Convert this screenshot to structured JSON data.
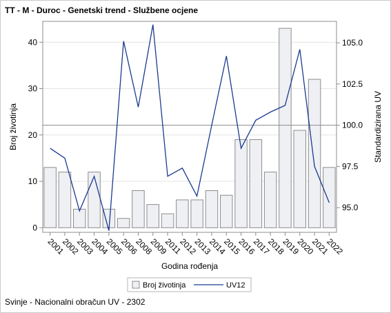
{
  "title": "TT - M - Duroc - Genetski trend - Službene ocjene",
  "footer": "Svinje - Nacionalni obračun UV - 2302",
  "chart_data": {
    "type": "bar",
    "categories": [
      "2001",
      "2002",
      "2003",
      "2004",
      "2005",
      "2006",
      "2008",
      "2009",
      "2011",
      "2012",
      "2013",
      "2014",
      "2015",
      "2016",
      "2017",
      "2018",
      "2019",
      "2020",
      "2021",
      "2022"
    ],
    "xlabel": "Godina rođenja",
    "ylabel": "Broj životinja",
    "y2label": "Standardizirana UV",
    "ylim": [
      -1,
      44.5
    ],
    "yticks": [
      0,
      10,
      20,
      30,
      40
    ],
    "y2lim": [
      93.5,
      106.3
    ],
    "y2ticks": [
      "95.0",
      "97.5",
      "100.0",
      "102.5",
      "105.0"
    ],
    "reference_line": 100.0,
    "series": [
      {
        "name": "Broj životinja",
        "type": "bar",
        "color": "#eef0f4",
        "stroke": "#8c8c8c",
        "values": [
          13,
          12,
          4,
          12,
          4,
          2,
          8,
          5,
          3,
          6,
          6,
          8,
          7,
          19,
          19,
          12,
          43,
          21,
          32,
          13
        ]
      },
      {
        "name": "UV12",
        "type": "line",
        "color": "#1a3a8f",
        "values": [
          98.6,
          98.0,
          94.8,
          96.9,
          93.6,
          105.1,
          101.1,
          106.1,
          96.9,
          97.4,
          95.7,
          100.0,
          104.2,
          98.6,
          100.3,
          100.8,
          101.2,
          104.6,
          97.5,
          95.3
        ]
      }
    ],
    "legend_position": "bottom",
    "grid": true
  }
}
